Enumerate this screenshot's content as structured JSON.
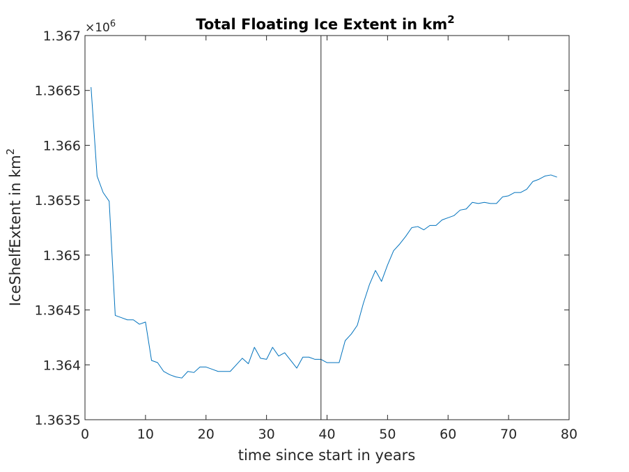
{
  "chart_data": {
    "type": "line",
    "title": "Total Floating Ice Extent in km",
    "title_superscript": "2",
    "xlabel": "time since start in years",
    "ylabel": "IceShelfExtent in km",
    "ylabel_superscript": "2",
    "y_exponent_label": "×10",
    "y_exponent_power": "6",
    "xlim": [
      0,
      80
    ],
    "ylim": [
      1.3635,
      1.367
    ],
    "x_ticks": [
      0,
      10,
      20,
      30,
      40,
      50,
      60,
      70,
      80
    ],
    "x_tick_labels": [
      "0",
      "10",
      "20",
      "30",
      "40",
      "50",
      "60",
      "70",
      "80"
    ],
    "y_ticks": [
      1.3635,
      1.364,
      1.3645,
      1.365,
      1.3655,
      1.366,
      1.3665,
      1.367
    ],
    "y_tick_labels": [
      "1.3635",
      "1.364",
      "1.3645",
      "1.365",
      "1.3655",
      "1.366",
      "1.3665",
      "1.367"
    ],
    "vertical_line_x": 39,
    "vertical_line_color": "#262626",
    "grid": false,
    "series": [
      {
        "color": "#0072bd",
        "x": [
          1,
          2,
          3,
          4,
          5,
          6,
          7,
          8,
          9,
          10,
          11,
          12,
          13,
          14,
          15,
          16,
          17,
          18,
          19,
          20,
          21,
          22,
          23,
          24,
          25,
          26,
          27,
          28,
          29,
          30,
          31,
          32,
          33,
          34,
          35,
          36,
          37,
          38,
          39,
          40,
          41,
          42,
          43,
          44,
          45,
          46,
          47,
          48,
          49,
          50,
          51,
          52,
          53,
          54,
          55,
          56,
          57,
          58,
          59,
          60,
          61,
          62,
          63,
          64,
          65,
          66,
          67,
          68,
          69,
          70,
          71,
          72,
          73,
          74,
          75,
          76,
          77,
          78
        ],
        "y": [
          1.36653,
          1.36572,
          1.36557,
          1.36549,
          1.36445,
          1.36443,
          1.36441,
          1.36441,
          1.36437,
          1.36439,
          1.36404,
          1.36402,
          1.36394,
          1.36391,
          1.36389,
          1.36388,
          1.36394,
          1.36393,
          1.36398,
          1.36398,
          1.36396,
          1.36394,
          1.36394,
          1.36394,
          1.364,
          1.36406,
          1.36401,
          1.36416,
          1.36406,
          1.36405,
          1.36416,
          1.36408,
          1.36411,
          1.36404,
          1.36397,
          1.36407,
          1.36407,
          1.36405,
          1.36405,
          1.36402,
          1.36402,
          1.36402,
          1.36422,
          1.36428,
          1.36436,
          1.36456,
          1.36473,
          1.36486,
          1.36476,
          1.36491,
          1.36504,
          1.3651,
          1.36517,
          1.36525,
          1.36526,
          1.36523,
          1.36527,
          1.36527,
          1.36532,
          1.36534,
          1.36536,
          1.36541,
          1.36542,
          1.36548,
          1.36547,
          1.36548,
          1.36547,
          1.36547,
          1.36553,
          1.36554,
          1.36557,
          1.36557,
          1.3656,
          1.36567,
          1.36569,
          1.36572,
          1.36573,
          1.36571
        ]
      }
    ]
  }
}
